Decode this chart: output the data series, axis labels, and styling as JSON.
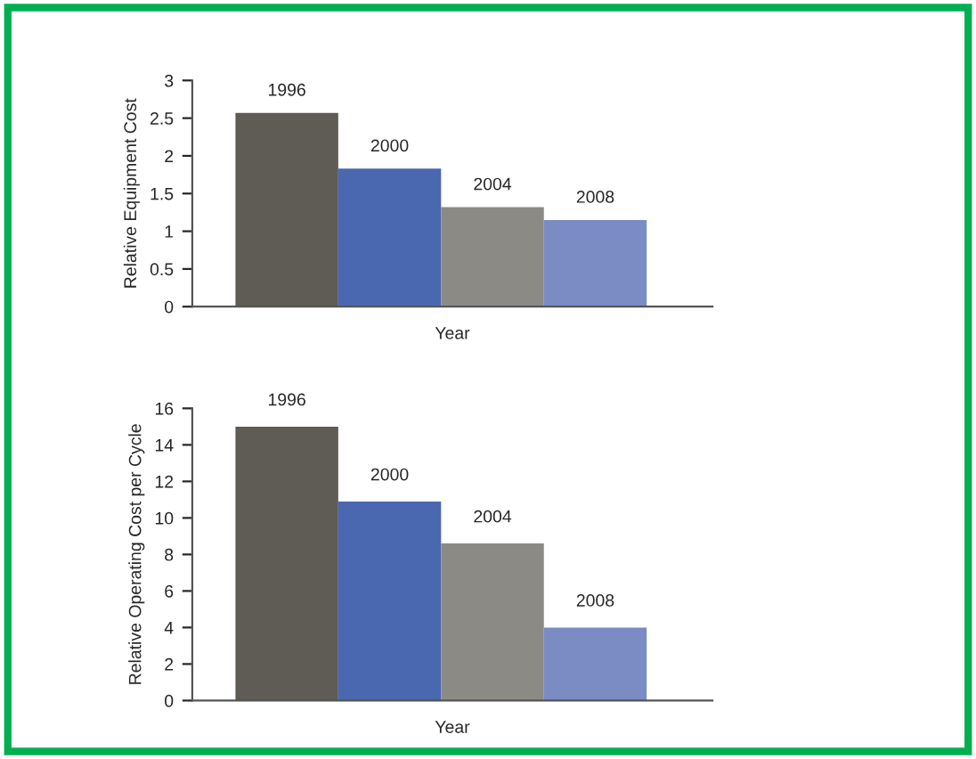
{
  "chart_data": [
    {
      "type": "bar",
      "categories": [
        "1996",
        "2000",
        "2004",
        "2008"
      ],
      "values": [
        2.57,
        1.83,
        1.32,
        1.15
      ],
      "colors": [
        "#5f5b55",
        "#4a68b0",
        "#8c8a85",
        "#7b8cc4"
      ],
      "xlabel": "Year",
      "ylabel": "Relative Equipment Cost",
      "ylim": [
        0,
        3
      ],
      "yticks": [
        0,
        {
          "value": 0.5,
          "label": "0.5"
        },
        1,
        {
          "value": 1.5,
          "label": "1.5"
        },
        2,
        {
          "value": 2.5,
          "label": "2.5"
        },
        3
      ],
      "tick_labels": "y",
      "grid": false
    },
    {
      "type": "bar",
      "categories": [
        "1996",
        "2000",
        "2004",
        "2008"
      ],
      "values": [
        15,
        10.9,
        8.6,
        4.0
      ],
      "colors": [
        "#5f5b55",
        "#4a68b0",
        "#8c8a85",
        "#7b8cc4"
      ],
      "xlabel": "Year",
      "ylabel": "Relative Operating Cost per Cycle",
      "ylim": [
        0,
        16
      ],
      "yticks": [
        0,
        2,
        4,
        6,
        8,
        10,
        12,
        14,
        16
      ],
      "tick_labels": "y",
      "grid": false
    }
  ]
}
